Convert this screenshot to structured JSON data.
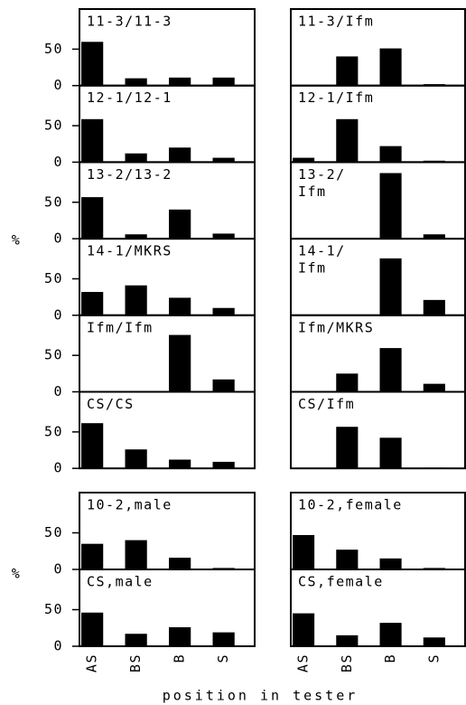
{
  "chart_data": [
    {
      "type": "bar",
      "title": "11-3/11-3",
      "values": [
        60,
        10,
        11,
        11
      ],
      "ylim": [
        0,
        105
      ],
      "yticks": [
        0,
        50
      ],
      "color": "#000000"
    },
    {
      "type": "bar",
      "title": "11-3/Ifm",
      "values": [
        0,
        40,
        51,
        2
      ],
      "ylim": [
        0,
        105
      ],
      "color": "#000000"
    },
    {
      "type": "bar",
      "title": "12-1/12-1",
      "values": [
        59,
        12,
        20,
        6
      ],
      "ylim": [
        0,
        105
      ],
      "yticks": [
        0,
        50
      ],
      "color": "#000000"
    },
    {
      "type": "bar",
      "title": "12-1/Ifm",
      "values": [
        6,
        59,
        22,
        2
      ],
      "ylim": [
        0,
        105
      ],
      "color": "#000000"
    },
    {
      "type": "bar",
      "title": "13-2/13-2",
      "values": [
        57,
        6,
        40,
        7
      ],
      "ylim": [
        0,
        105
      ],
      "yticks": [
        0,
        50
      ],
      "color": "#000000"
    },
    {
      "type": "bar",
      "title": [
        "13-2/",
        "Ifm"
      ],
      "values": [
        0,
        0,
        90,
        6
      ],
      "ylim": [
        0,
        105
      ],
      "color": "#000000"
    },
    {
      "type": "bar",
      "title": "14-1/MKRS",
      "values": [
        32,
        41,
        24,
        10
      ],
      "ylim": [
        0,
        105
      ],
      "yticks": [
        0,
        50
      ],
      "color": "#000000"
    },
    {
      "type": "bar",
      "title": [
        "14-1/",
        "Ifm"
      ],
      "values": [
        0,
        0,
        78,
        21
      ],
      "ylim": [
        0,
        105
      ],
      "color": "#000000"
    },
    {
      "type": "bar",
      "title": "Ifm/Ifm",
      "values": [
        0,
        0,
        78,
        17
      ],
      "ylim": [
        0,
        105
      ],
      "yticks": [
        0,
        50
      ],
      "color": "#000000"
    },
    {
      "type": "bar",
      "title": "Ifm/MKRS",
      "values": [
        0,
        25,
        60,
        11
      ],
      "ylim": [
        0,
        105
      ],
      "color": "#000000"
    },
    {
      "type": "bar",
      "title": "CS/CS",
      "values": [
        62,
        26,
        12,
        9
      ],
      "ylim": [
        0,
        105
      ],
      "yticks": [
        0,
        50
      ],
      "color": "#000000"
    },
    {
      "type": "bar",
      "title": "CS/Ifm",
      "values": [
        0,
        57,
        42,
        1
      ],
      "ylim": [
        0,
        105
      ],
      "color": "#000000"
    },
    {
      "type": "bar",
      "title": "10-2,male",
      "values": [
        35,
        40,
        16,
        2
      ],
      "ylim": [
        0,
        105
      ],
      "yticks": [
        0,
        50
      ],
      "color": "#000000"
    },
    {
      "type": "bar",
      "title": "10-2,female",
      "values": [
        47,
        27,
        15,
        2
      ],
      "ylim": [
        0,
        105
      ],
      "color": "#000000"
    },
    {
      "type": "bar",
      "title": "CS,male",
      "categories": [
        "AS",
        "BS",
        "B",
        "S"
      ],
      "values": [
        46,
        17,
        26,
        19
      ],
      "ylim": [
        0,
        105
      ],
      "yticks": [
        0,
        50
      ],
      "color": "#000000"
    },
    {
      "type": "bar",
      "title": "CS,female",
      "categories": [
        "AS",
        "BS",
        "B",
        "S"
      ],
      "values": [
        45,
        15,
        32,
        12
      ],
      "ylim": [
        0,
        105
      ],
      "color": "#000000"
    }
  ],
  "y_label": "%",
  "x_label": "position in tester"
}
